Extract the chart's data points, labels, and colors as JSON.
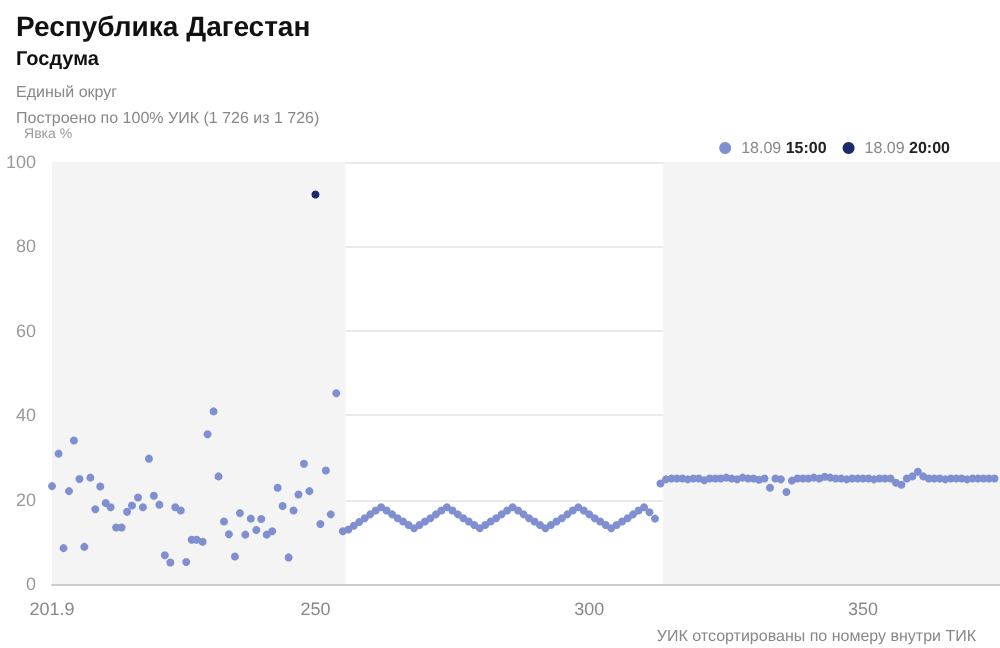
{
  "chart_data": {
    "type": "scatter",
    "title": "Республика Дагестан",
    "subtitle": "Госдума",
    "annotations": [
      "Единый округ",
      "Построено по 100% УИК (1 726 из 1 726)"
    ],
    "ylabel": "Явка %",
    "xlabel": "УИК отсортированы по номеру внутри ТИК",
    "xlim": [
      201.9,
      375
    ],
    "xticks": [
      201.9,
      250,
      300,
      350
    ],
    "ylim": [
      0,
      100
    ],
    "yticks": [
      0,
      20,
      40,
      60,
      80,
      100
    ],
    "grid": "y",
    "legend": "top right",
    "marker": "circle",
    "bands": [
      {
        "axis": "x",
        "from": 201.9,
        "to": 255.5,
        "color": "#f4f4f4"
      },
      {
        "axis": "x",
        "from": 313.5,
        "to": 375,
        "color": "#f4f4f4"
      }
    ],
    "series": [
      {
        "name": "18.09 15:00",
        "color": "#7f8fcf",
        "x": [
          201.9,
          203.1,
          204,
          205,
          205.9,
          206.9,
          207.8,
          208.9,
          209.8,
          210.7,
          211.7,
          212.6,
          213.6,
          214.6,
          215.6,
          216.5,
          217.6,
          218.5,
          219.6,
          220.5,
          221.5,
          222.5,
          223.5,
          224.4,
          225.4,
          226.4,
          227.4,
          228.3,
          229.4,
          230.3,
          231.4,
          232.3,
          233.3,
          234.2,
          235.3,
          236.2,
          237.2,
          238.2,
          239.2,
          240.1,
          241.1,
          242.1,
          243.1,
          244,
          245.1,
          246,
          246.9,
          247.9,
          248.9,
          250.9,
          251.9,
          252.8,
          253.8,
          255,
          256,
          257,
          258,
          259,
          260,
          261,
          262,
          263,
          264,
          265,
          266,
          267,
          268,
          269,
          270,
          271,
          272,
          273,
          274,
          275,
          276,
          277,
          278,
          279,
          280,
          281,
          282,
          283,
          284,
          285,
          286,
          287,
          288,
          289,
          290,
          291,
          292,
          293,
          294,
          295,
          296,
          297,
          298,
          299,
          300,
          301,
          302,
          303,
          304,
          305,
          306,
          307,
          308,
          309,
          310,
          311,
          312,
          313,
          314,
          315,
          316,
          317,
          318,
          319,
          320,
          321,
          322,
          323,
          324,
          325,
          326,
          327,
          328,
          329,
          330,
          331,
          332,
          333,
          334,
          335,
          336,
          337,
          338,
          339,
          340,
          341,
          342,
          343,
          344,
          345,
          346,
          347,
          348,
          349,
          350,
          351,
          352,
          353,
          354,
          355,
          356,
          357,
          358,
          359,
          360,
          361,
          362,
          363,
          364,
          365,
          366,
          367,
          368,
          369,
          370,
          371,
          372,
          373,
          374
        ],
        "values": [
          23.2,
          30.9,
          8.5,
          22,
          34,
          24.9,
          8.8,
          25.2,
          17.7,
          23.1,
          19.2,
          18.2,
          13.4,
          13.4,
          17.1,
          18.6,
          20.5,
          18.2,
          29.7,
          20.9,
          18.8,
          6.8,
          5.1,
          18.2,
          17.4,
          5.2,
          10.5,
          10.5,
          10,
          35.5,
          40.9,
          25.5,
          14.8,
          11.8,
          6.5,
          16.8,
          11.7,
          15.5,
          12.8,
          15.4,
          11.7,
          12.5,
          22.8,
          18.5,
          6.3,
          17.4,
          21.2,
          28.5,
          22,
          14.2,
          26.9,
          16.5,
          45.2,
          12.5,
          12.9,
          13.8,
          14.7,
          15.6,
          16.5,
          17.4,
          18.2,
          17.4,
          16.5,
          15.6,
          14.8,
          14,
          13.2,
          14,
          14.8,
          15.6,
          16.5,
          17.4,
          18.2,
          17.4,
          16.5,
          15.6,
          14.8,
          14,
          13.2,
          14,
          14.8,
          15.6,
          16.5,
          17.4,
          18.2,
          17.4,
          16.5,
          15.6,
          14.8,
          14,
          13.2,
          14,
          14.8,
          15.6,
          16.5,
          17.4,
          18.2,
          17.4,
          16.5,
          15.6,
          14.8,
          14,
          13.2,
          14,
          14.8,
          15.6,
          16.5,
          17.4,
          18.2,
          17,
          15.5,
          23.8,
          24.8,
          25,
          25,
          25,
          24.8,
          25,
          25,
          24.6,
          25,
          25,
          25,
          25.2,
          25,
          24.8,
          25.2,
          25,
          25,
          24.7,
          25,
          22.8,
          25,
          24.8,
          21.8,
          24.5,
          25,
          25,
          25,
          25.2,
          25,
          25.4,
          25.2,
          25,
          25,
          24.8,
          25,
          25,
          25,
          25,
          24.8,
          25,
          25,
          25,
          24,
          23.5,
          25,
          25.5,
          26.6,
          25.5,
          25,
          25,
          25,
          24.8,
          25,
          25,
          25,
          24.8,
          25,
          25,
          25,
          25,
          25
        ]
      },
      {
        "name": "18.09 20:00",
        "color": "#1a2a6c",
        "x": [
          250
        ],
        "values": [
          92.3
        ]
      }
    ]
  }
}
